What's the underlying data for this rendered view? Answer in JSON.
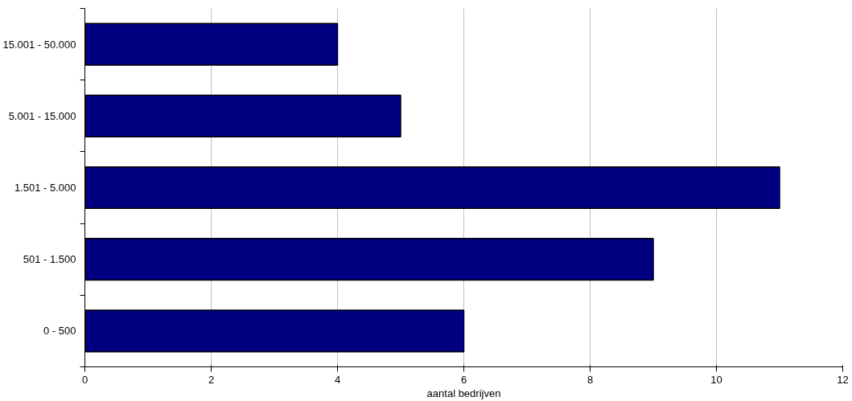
{
  "chart_data": {
    "type": "bar",
    "orientation": "horizontal",
    "xlabel": "aantal bedrijven",
    "categories": [
      "15.001 - 50.000",
      "5.001 - 15.000",
      "1.501 - 5.000",
      "501 - 1.500",
      "0 - 500"
    ],
    "values": [
      4,
      5,
      11,
      9,
      6
    ],
    "color": "#000080",
    "xlim": [
      0,
      12
    ],
    "xticks": [
      0,
      2,
      4,
      6,
      8,
      10,
      12
    ],
    "grid": "x"
  }
}
